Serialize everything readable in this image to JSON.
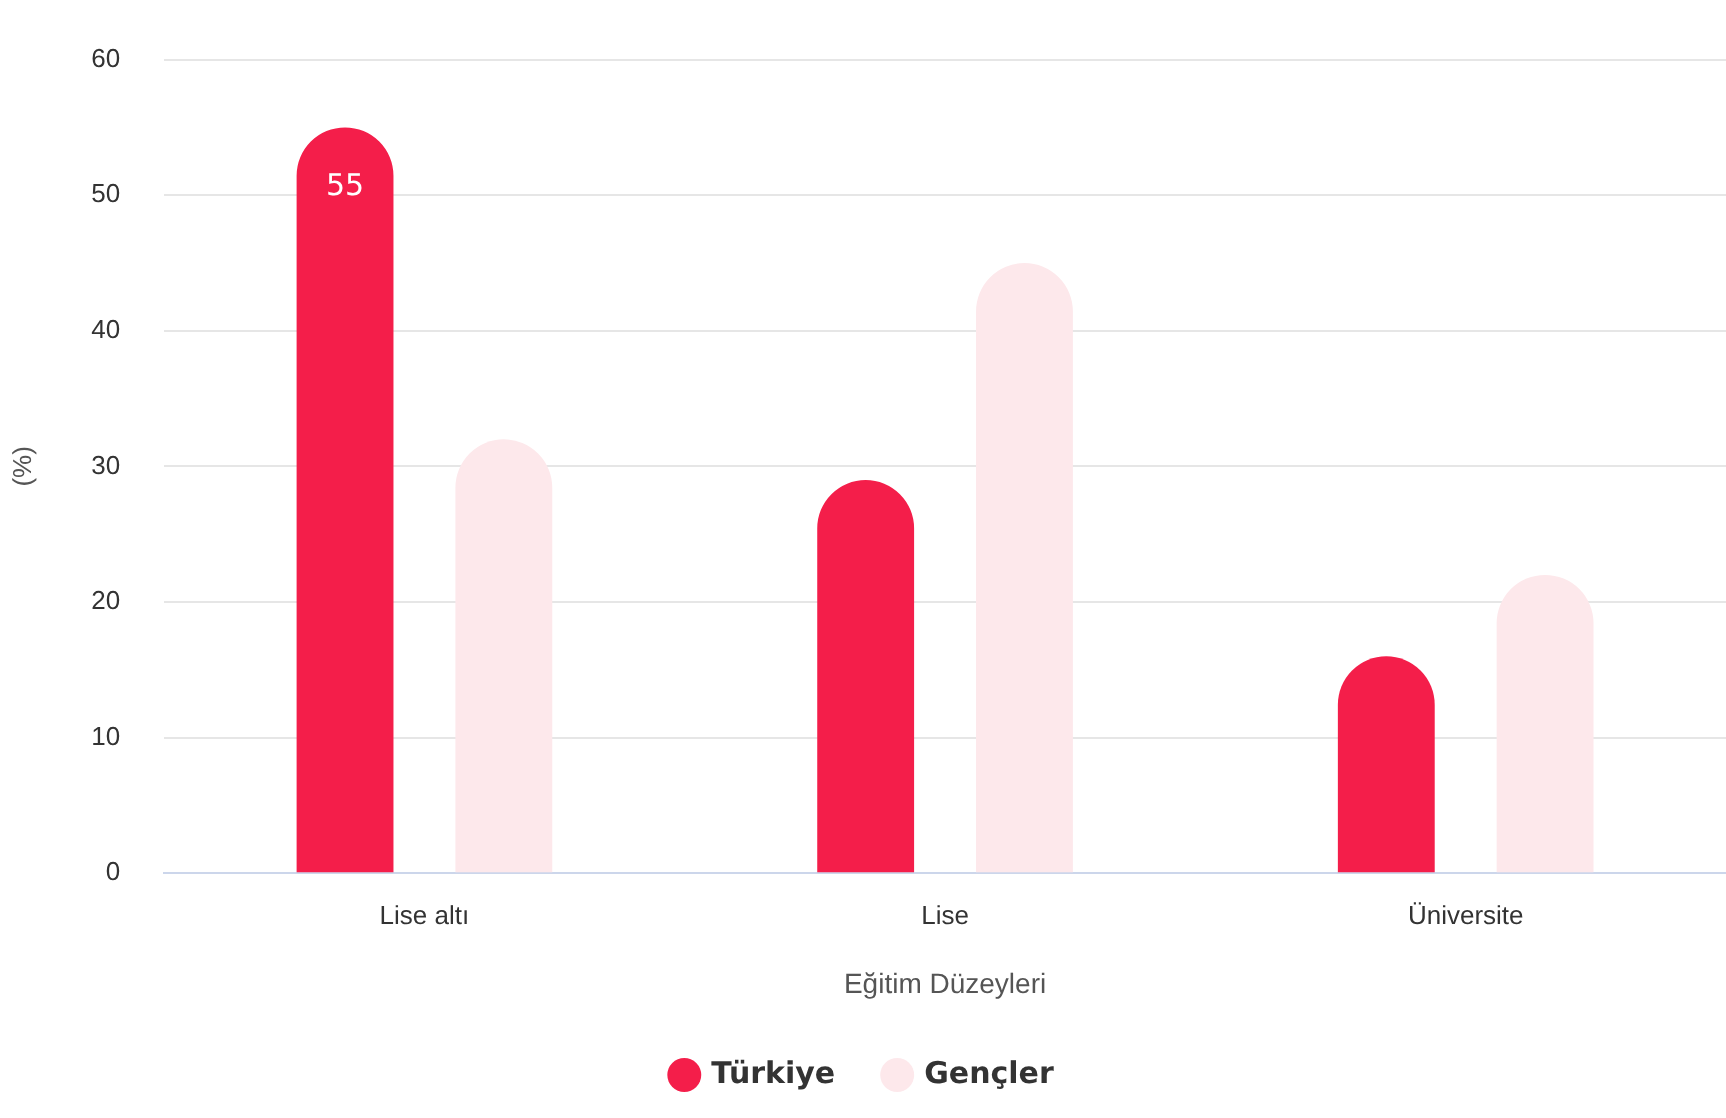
{
  "chart_data": {
    "type": "bar",
    "xlabel": "Eğitim Düzeyleri",
    "ylabel": "(%)",
    "categories": [
      "Lise altı",
      "Lise",
      "Üniversite"
    ],
    "series": [
      {
        "name": "Türkiye",
        "color": "#f41e4a",
        "values": [
          55,
          29,
          16
        ],
        "value_labels": [
          "55",
          null,
          null
        ]
      },
      {
        "name": "Gençler",
        "color": "#fde8eb",
        "values": [
          32,
          45,
          22
        ]
      }
    ],
    "ylim": [
      0,
      60
    ],
    "yticks": [
      0,
      10,
      20,
      30,
      40,
      50,
      60
    ],
    "grid": "y",
    "legend": "bottom"
  }
}
